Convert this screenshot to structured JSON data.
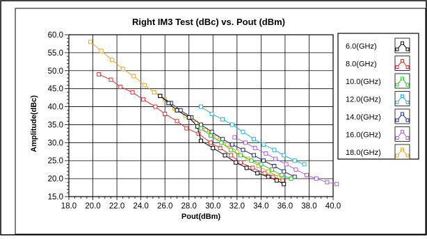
{
  "chart_data": {
    "type": "line",
    "title": "Right IM3 Test (dBc) vs. Pout (dBm)",
    "xlabel": "Pout(dBm)",
    "ylabel": "Amplitude(dBc)",
    "xlim": [
      18.0,
      40.0
    ],
    "ylim": [
      15.0,
      60.0
    ],
    "x_ticks": [
      "18.0",
      "20.0",
      "22.0",
      "24.0",
      "26.0",
      "28.0",
      "30.0",
      "32.0",
      "34.0",
      "36.0",
      "38.0",
      "40.0"
    ],
    "y_ticks": [
      "15.0",
      "20.0",
      "25.0",
      "30.0",
      "35.0",
      "40.0",
      "45.0",
      "50.0",
      "55.0",
      "60.0"
    ],
    "grid": true,
    "legend_position": "right",
    "series": [
      {
        "name": "6.0(GHz)",
        "color": "#000000",
        "points": [
          [
            25.6,
            43.0
          ],
          [
            26.3,
            41.0
          ],
          [
            27.0,
            39.0
          ],
          [
            28.0,
            37.0
          ],
          [
            28.7,
            34.5
          ],
          [
            29.0,
            30.5
          ],
          [
            30.0,
            28.5
          ],
          [
            31.0,
            26.5
          ],
          [
            31.9,
            24.5
          ],
          [
            32.8,
            23.0
          ],
          [
            33.7,
            21.5
          ],
          [
            34.6,
            20.5
          ],
          [
            35.3,
            19.5
          ],
          [
            35.9,
            18.5
          ]
        ]
      },
      {
        "name": "8.0(GHz)",
        "color": "#e03030",
        "points": [
          [
            20.5,
            49.0
          ],
          [
            21.5,
            47.5
          ],
          [
            22.3,
            45.5
          ],
          [
            23.3,
            44.0
          ],
          [
            24.2,
            42.0
          ],
          [
            25.2,
            40.0
          ],
          [
            26.0,
            38.0
          ],
          [
            27.0,
            36.0
          ],
          [
            27.8,
            34.0
          ],
          [
            28.8,
            32.5
          ],
          [
            29.8,
            30.0
          ],
          [
            30.6,
            28.5
          ],
          [
            31.5,
            26.5
          ],
          [
            32.3,
            24.5
          ],
          [
            33.3,
            23.0
          ],
          [
            34.3,
            21.5
          ],
          [
            35.0,
            20.5
          ],
          [
            35.8,
            19.5
          ]
        ]
      },
      {
        "name": "10.0(GHz)",
        "color": "#22cc22",
        "points": [
          [
            29.0,
            34.0
          ],
          [
            29.8,
            32.0
          ],
          [
            30.7,
            30.0
          ],
          [
            31.5,
            28.0
          ],
          [
            32.3,
            26.5
          ],
          [
            33.2,
            25.0
          ],
          [
            34.0,
            24.0
          ],
          [
            34.9,
            22.5
          ],
          [
            35.7,
            21.0
          ],
          [
            36.5,
            20.0
          ]
        ]
      },
      {
        "name": "12.0(GHz)",
        "color": "#22b4e6",
        "points": [
          [
            29.0,
            40.0
          ],
          [
            29.9,
            38.0
          ],
          [
            30.8,
            36.5
          ],
          [
            31.6,
            35.0
          ],
          [
            32.5,
            33.0
          ],
          [
            33.4,
            31.0
          ],
          [
            34.2,
            29.5
          ],
          [
            35.1,
            28.0
          ],
          [
            35.9,
            26.5
          ],
          [
            36.8,
            25.0
          ],
          [
            37.6,
            24.0
          ]
        ]
      },
      {
        "name": "14.0(GHz)",
        "color": "#1a2a80",
        "points": [
          [
            25.6,
            43.0
          ],
          [
            26.5,
            41.0
          ],
          [
            27.3,
            39.0
          ],
          [
            28.2,
            37.0
          ],
          [
            29.0,
            35.0
          ],
          [
            29.9,
            33.0
          ],
          [
            30.8,
            31.0
          ],
          [
            31.6,
            29.5
          ],
          [
            32.5,
            28.0
          ],
          [
            33.4,
            26.5
          ],
          [
            34.2,
            25.0
          ],
          [
            35.1,
            23.5
          ],
          [
            35.9,
            22.0
          ],
          [
            36.8,
            20.5
          ]
        ]
      },
      {
        "name": "16.0(GHz)",
        "color": "#b060e0",
        "points": [
          [
            31.8,
            31.5
          ],
          [
            32.7,
            30.0
          ],
          [
            33.5,
            28.5
          ],
          [
            34.4,
            27.0
          ],
          [
            35.2,
            25.5
          ],
          [
            36.1,
            24.0
          ],
          [
            36.9,
            22.5
          ],
          [
            37.8,
            21.0
          ],
          [
            38.6,
            20.0
          ],
          [
            39.5,
            19.0
          ],
          [
            40.3,
            18.5
          ]
        ]
      },
      {
        "name": "18.0(GHz)",
        "color": "#f0a020",
        "points": [
          [
            19.8,
            58.0
          ],
          [
            20.7,
            55.5
          ],
          [
            21.6,
            53.0
          ],
          [
            22.5,
            50.5
          ],
          [
            23.4,
            48.5
          ],
          [
            24.3,
            46.0
          ],
          [
            25.1,
            44.0
          ],
          [
            26.0,
            42.0
          ],
          [
            26.8,
            39.5
          ],
          [
            27.7,
            37.5
          ],
          [
            28.6,
            35.5
          ],
          [
            29.4,
            33.5
          ],
          [
            30.3,
            31.5
          ],
          [
            31.2,
            29.5
          ],
          [
            32.0,
            27.5
          ],
          [
            32.9,
            25.5
          ],
          [
            33.8,
            23.5
          ],
          [
            34.6,
            22.0
          ],
          [
            35.5,
            20.5
          ]
        ]
      }
    ]
  }
}
